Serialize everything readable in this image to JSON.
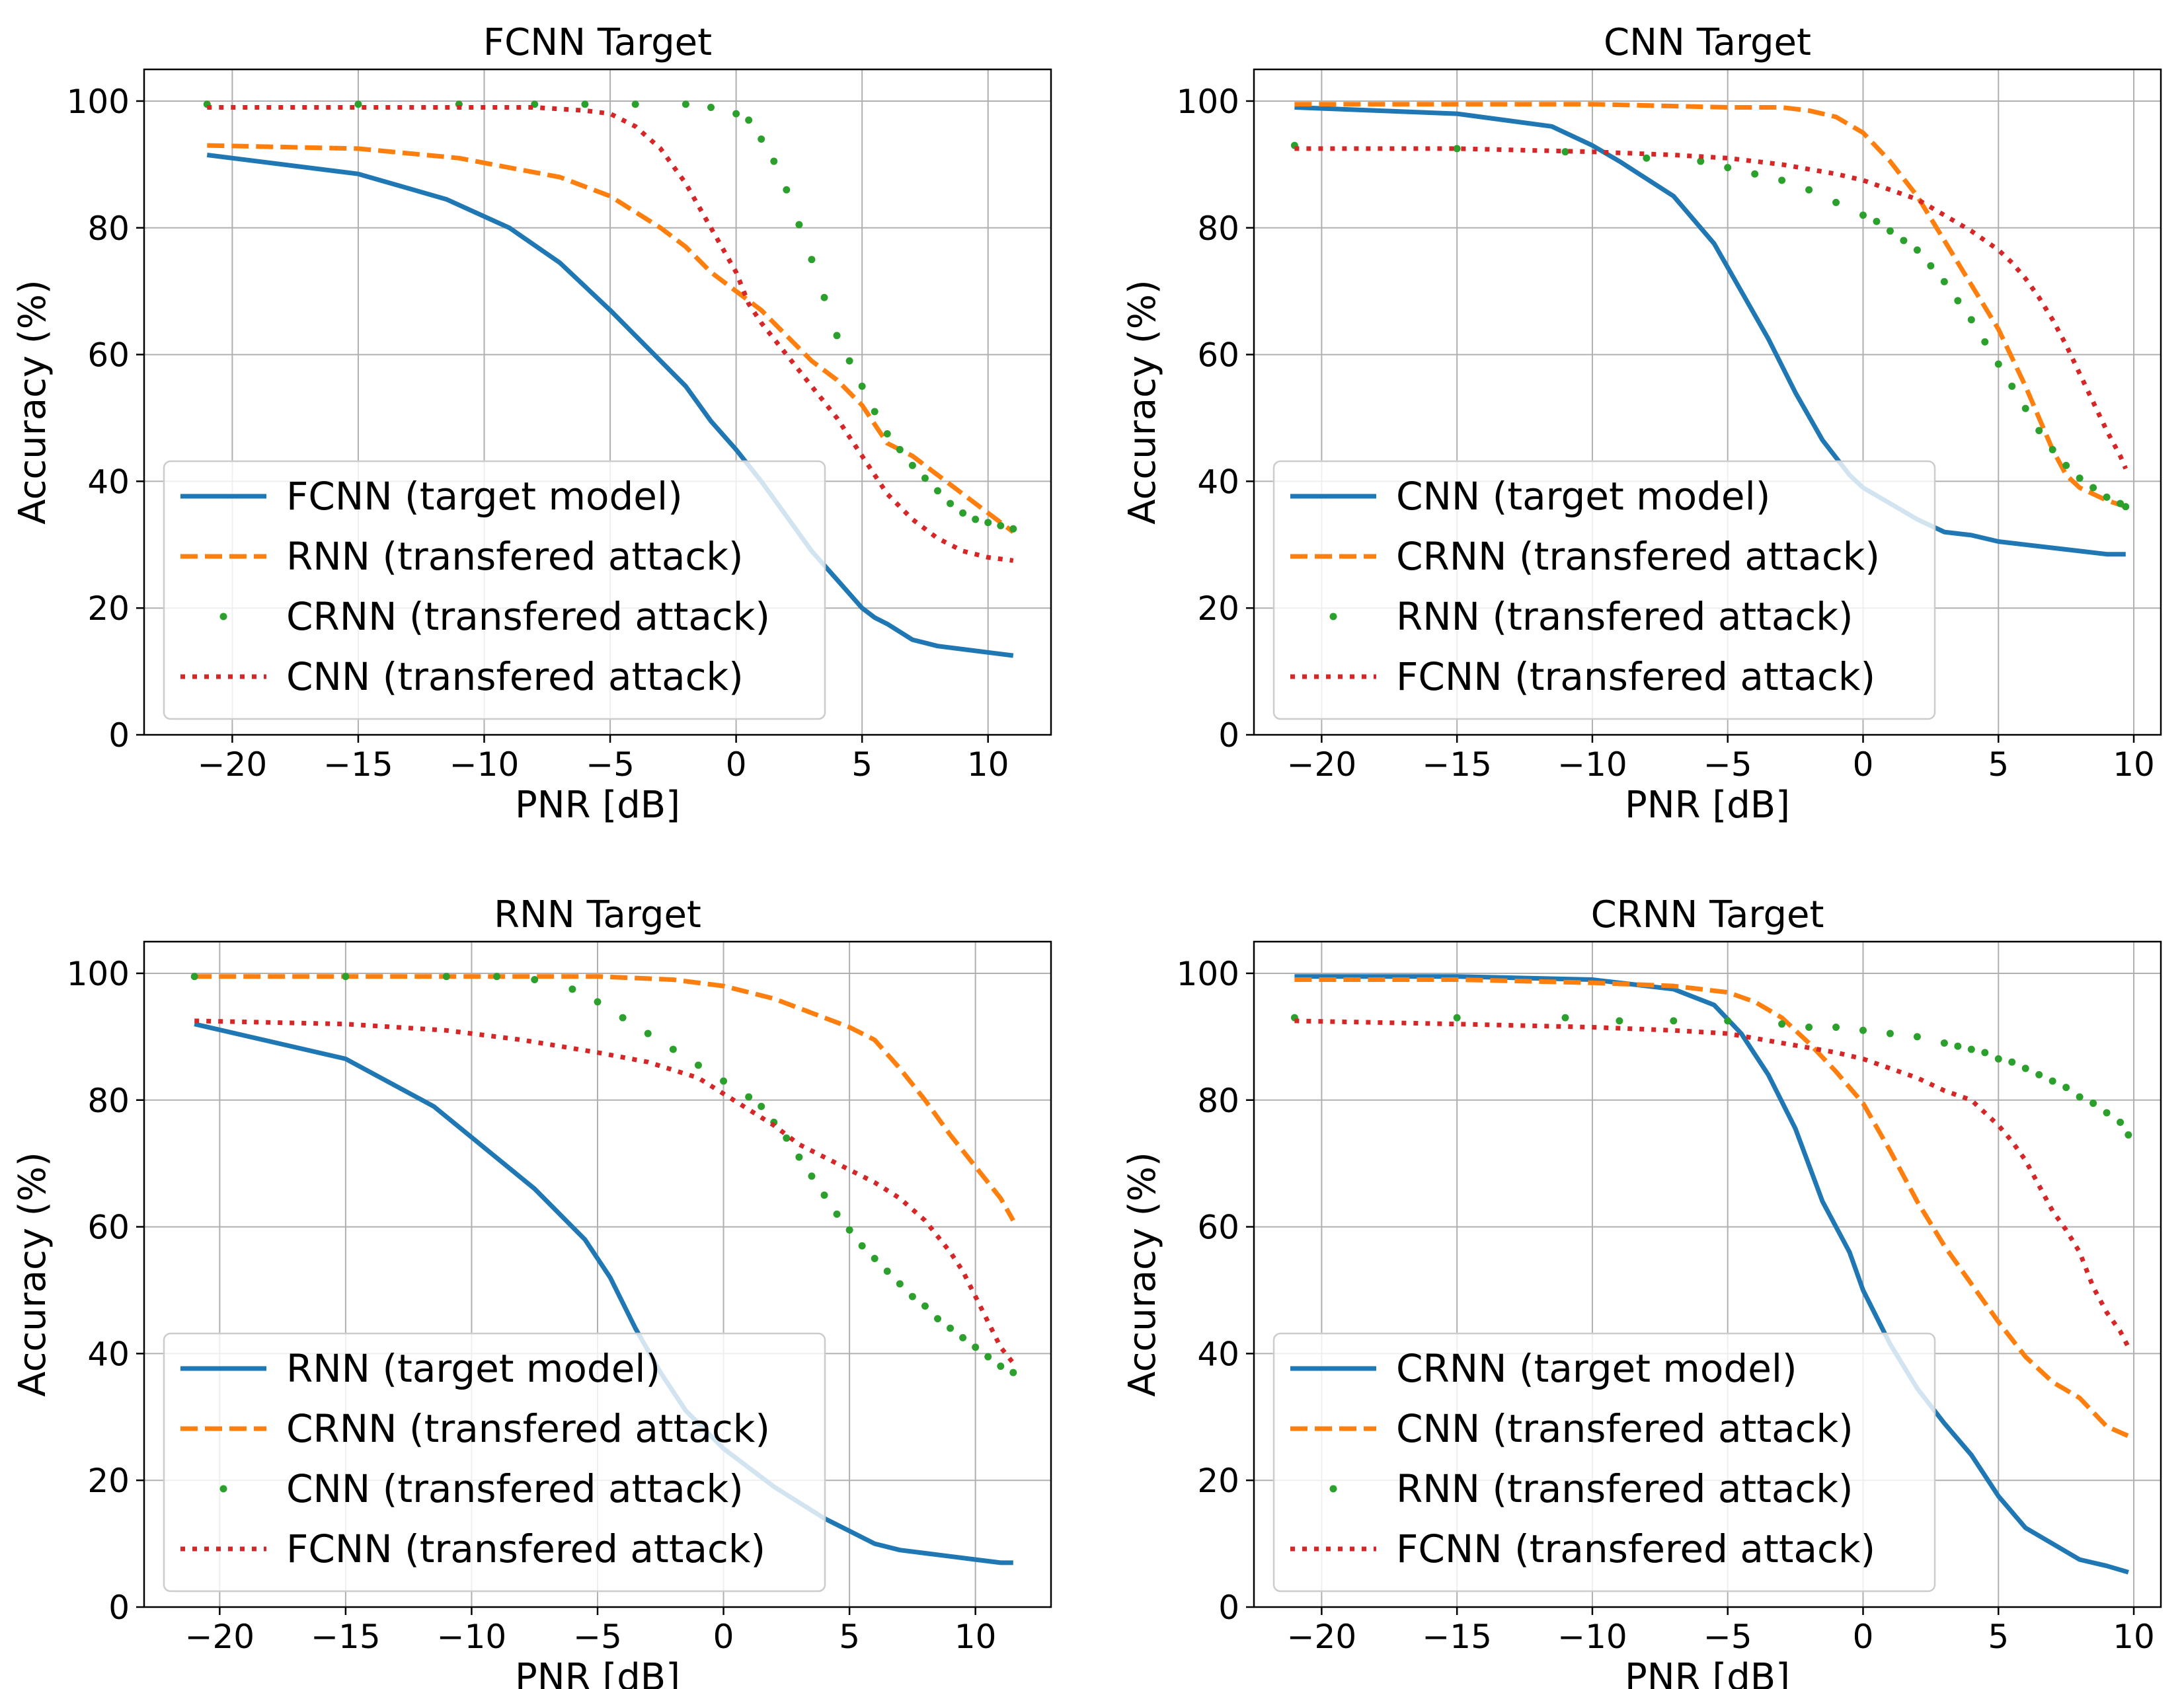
{
  "chart_data": [
    {
      "type": "line",
      "title": "FCNN Target",
      "xlabel": "PNR [dB]",
      "ylabel": "Accuracy (%)",
      "xlim": [
        -23.5,
        12.5
      ],
      "ylim": [
        0,
        105
      ],
      "xticks": [
        -20,
        -15,
        -10,
        -5,
        0,
        5,
        10
      ],
      "yticks": [
        0,
        20,
        40,
        60,
        80,
        100
      ],
      "xtick_labels": [
        "−20",
        "−15",
        "−10",
        "−5",
        "0",
        "5",
        "10"
      ],
      "ytick_labels": [
        "0",
        "20",
        "40",
        "60",
        "80",
        "100"
      ],
      "grid": true,
      "legend_position": "lower-left",
      "series": [
        {
          "name": "FCNN (target model)",
          "style": "solid",
          "color": "#1f77b4",
          "x": [
            -21,
            -15,
            -11.5,
            -9,
            -7,
            -5,
            -4,
            -3,
            -2,
            -1,
            0,
            1,
            2,
            3,
            4,
            5,
            5.5,
            6,
            7,
            8,
            9,
            10,
            11
          ],
          "y": [
            91.5,
            88.5,
            84.5,
            80,
            74.5,
            67,
            63,
            59,
            55,
            49.5,
            45,
            40,
            34.5,
            29,
            24.5,
            20,
            18.5,
            17.5,
            15,
            14,
            13.5,
            13,
            12.5
          ]
        },
        {
          "name": "RNN (transfered attack)",
          "style": "dashed",
          "color": "#ff7f0e",
          "x": [
            -21,
            -15,
            -11,
            -9,
            -7,
            -5,
            -3,
            -2,
            -1,
            0,
            1,
            2,
            3,
            4,
            5,
            6,
            7,
            8,
            9,
            10,
            11
          ],
          "y": [
            93,
            92.5,
            91,
            89.5,
            88,
            85,
            80,
            77,
            73,
            70,
            67,
            63,
            59,
            56,
            52,
            46,
            44,
            41,
            38,
            35,
            32
          ]
        },
        {
          "name": "CRNN (transfered attack)",
          "style": "dotted-markers",
          "color": "#2ca02c",
          "x": [
            -21,
            -15,
            -11,
            -8,
            -6,
            -4,
            -2,
            -1,
            0,
            0.5,
            1,
            1.5,
            2,
            2.5,
            3,
            3.5,
            4,
            4.5,
            5,
            5.5,
            6,
            6.5,
            7,
            7.5,
            8,
            8.5,
            9,
            9.5,
            10,
            10.5,
            11
          ],
          "y": [
            99.5,
            99.5,
            99.5,
            99.5,
            99.5,
            99.5,
            99.5,
            99,
            98,
            97,
            94,
            90.5,
            86,
            80.5,
            75,
            69,
            63,
            59,
            55,
            51,
            47.5,
            45,
            42.5,
            40.5,
            38.5,
            36.5,
            35,
            34,
            33.5,
            33,
            32.5
          ]
        },
        {
          "name": "CNN (transfered attack)",
          "style": "dotted",
          "color": "#d62728",
          "x": [
            -21,
            -15,
            -11,
            -8,
            -6,
            -5,
            -4,
            -3,
            -2,
            -1,
            0,
            0.5,
            1,
            2,
            3,
            4,
            5,
            6,
            7,
            8,
            9,
            10,
            11
          ],
          "y": [
            99,
            99,
            99,
            99,
            98.5,
            98,
            96,
            92.5,
            87,
            80,
            73,
            68,
            65,
            60,
            55,
            50,
            44,
            38,
            34,
            31,
            29,
            28,
            27.5
          ]
        }
      ]
    },
    {
      "type": "line",
      "title": "CNN Target",
      "xlabel": "PNR [dB]",
      "ylabel": "Accuracy (%)",
      "xlim": [
        -22.5,
        11
      ],
      "ylim": [
        0,
        105
      ],
      "xticks": [
        -20,
        -15,
        -10,
        -5,
        0,
        5,
        10
      ],
      "yticks": [
        0,
        20,
        40,
        60,
        80,
        100
      ],
      "xtick_labels": [
        "−20",
        "−15",
        "−10",
        "−5",
        "0",
        "5",
        "10"
      ],
      "ytick_labels": [
        "0",
        "20",
        "40",
        "60",
        "80",
        "100"
      ],
      "grid": true,
      "legend_position": "lower-left",
      "series": [
        {
          "name": "CNN (target model)",
          "style": "solid",
          "color": "#1f77b4",
          "x": [
            -21,
            -15,
            -11.5,
            -10,
            -9,
            -7,
            -5.5,
            -4.5,
            -3.5,
            -2.5,
            -1.5,
            -0.5,
            0,
            1,
            2,
            3,
            4,
            5,
            6,
            7,
            8,
            9,
            9.7
          ],
          "y": [
            99,
            98,
            96,
            93,
            90.5,
            85,
            77.5,
            70,
            62.5,
            54,
            46.5,
            41,
            39,
            36.5,
            34,
            32,
            31.5,
            30.5,
            30,
            29.5,
            29,
            28.5,
            28.5
          ]
        },
        {
          "name": "CRNN (transfered attack)",
          "style": "dashed",
          "color": "#ff7f0e",
          "x": [
            -21,
            -15,
            -10,
            -5,
            -3,
            -2,
            -1,
            0,
            1,
            2,
            3,
            4,
            5,
            6,
            6.5,
            7,
            7.5,
            8,
            8.5,
            9,
            9.7
          ],
          "y": [
            99.5,
            99.5,
            99.5,
            99,
            99,
            98.5,
            97.5,
            95,
            90.5,
            85,
            78,
            71,
            64,
            55,
            50,
            45,
            41,
            39,
            38,
            37,
            36
          ]
        },
        {
          "name": "RNN (transfered attack)",
          "style": "dotted-markers",
          "color": "#2ca02c",
          "x": [
            -21,
            -15,
            -11,
            -8,
            -6,
            -5,
            -4,
            -3,
            -2,
            -1,
            0,
            0.5,
            1,
            1.5,
            2,
            2.5,
            3,
            3.5,
            4,
            4.5,
            5,
            5.5,
            6,
            6.5,
            7,
            7.5,
            8,
            8.5,
            9,
            9.5,
            9.7
          ],
          "y": [
            93,
            92.5,
            92,
            91,
            90.5,
            89.5,
            88.5,
            87.5,
            86,
            84,
            82,
            81,
            79.5,
            78,
            76.5,
            74,
            71.5,
            68.5,
            65.5,
            62,
            58.5,
            55,
            51.5,
            48,
            45,
            42.5,
            40.5,
            39,
            37.5,
            36.5,
            36
          ]
        },
        {
          "name": "FCNN (transfered attack)",
          "style": "dotted",
          "color": "#d62728",
          "x": [
            -21,
            -15,
            -10,
            -7,
            -5,
            -3,
            -1,
            0,
            1,
            2,
            3,
            4,
            5,
            5.5,
            6,
            6.5,
            7,
            7.5,
            8,
            8.5,
            9,
            9.5,
            9.7
          ],
          "y": [
            92.5,
            92.5,
            92,
            91.5,
            91,
            90,
            88.5,
            87.5,
            86,
            84.5,
            82,
            79.5,
            76.5,
            74.5,
            72,
            69,
            65.5,
            61.5,
            57,
            52.5,
            48,
            44,
            42
          ]
        }
      ]
    },
    {
      "type": "line",
      "title": "RNN Target",
      "xlabel": "PNR [dB]",
      "ylabel": "Accuracy (%)",
      "xlim": [
        -23,
        13
      ],
      "ylim": [
        0,
        105
      ],
      "xticks": [
        -20,
        -15,
        -10,
        -5,
        0,
        5,
        10
      ],
      "yticks": [
        0,
        20,
        40,
        60,
        80,
        100
      ],
      "xtick_labels": [
        "−20",
        "−15",
        "−10",
        "−5",
        "0",
        "5",
        "10"
      ],
      "ytick_labels": [
        "0",
        "20",
        "40",
        "60",
        "80",
        "100"
      ],
      "grid": true,
      "legend_position": "lower-left",
      "series": [
        {
          "name": "RNN (target model)",
          "style": "solid",
          "color": "#1f77b4",
          "x": [
            -21,
            -15,
            -11.5,
            -9.5,
            -7.5,
            -5.5,
            -4.5,
            -3.5,
            -2.5,
            -1.5,
            -0.5,
            0,
            1,
            2,
            3,
            4,
            5,
            6,
            7,
            8,
            9,
            10,
            11,
            11.5
          ],
          "y": [
            92,
            86.5,
            79,
            72.5,
            66,
            58,
            52,
            44,
            37,
            31,
            27,
            25,
            22,
            19,
            16.5,
            14,
            12,
            10,
            9,
            8.5,
            8,
            7.5,
            7,
            7
          ]
        },
        {
          "name": "CRNN (transfered attack)",
          "style": "dashed",
          "color": "#ff7f0e",
          "x": [
            -21,
            -15,
            -10,
            -5,
            -2,
            0,
            1,
            2,
            3,
            4,
            5,
            6,
            7,
            8,
            9,
            10,
            11,
            11.5
          ],
          "y": [
            99.5,
            99.5,
            99.5,
            99.5,
            99,
            98,
            97,
            96,
            94.5,
            93,
            91.5,
            89.5,
            85,
            80,
            74.5,
            69.5,
            64.5,
            61
          ]
        },
        {
          "name": "CNN (transfered attack)",
          "style": "dotted-markers",
          "color": "#2ca02c",
          "x": [
            -21,
            -15,
            -11,
            -9,
            -7.5,
            -6,
            -5,
            -4,
            -3,
            -2,
            -1,
            0,
            1,
            1.5,
            2,
            2.5,
            3,
            3.5,
            4,
            4.5,
            5,
            5.5,
            6,
            6.5,
            7,
            7.5,
            8,
            8.5,
            9,
            9.5,
            10,
            10.5,
            11,
            11.5
          ],
          "y": [
            99.5,
            99.5,
            99.5,
            99.5,
            99,
            97.5,
            95.5,
            93,
            90.5,
            88,
            85.5,
            83,
            80.5,
            79,
            76.5,
            74,
            71,
            68,
            65,
            62,
            59.5,
            57,
            55,
            53,
            51,
            49,
            47.5,
            45.5,
            44,
            42.5,
            41,
            39.5,
            38,
            37
          ]
        },
        {
          "name": "FCNN (transfered attack)",
          "style": "dotted",
          "color": "#d62728",
          "x": [
            -21,
            -15,
            -11,
            -8,
            -5,
            -3,
            -1,
            0,
            1,
            2,
            3,
            4,
            5,
            6,
            7,
            8,
            9,
            9.5,
            10,
            10.5,
            11,
            11.5
          ],
          "y": [
            92.5,
            92,
            91,
            89.5,
            87.5,
            86,
            83.5,
            81,
            78.5,
            76,
            73,
            71,
            69,
            67,
            64.5,
            61,
            56,
            53,
            49,
            45,
            41,
            38.5
          ]
        }
      ]
    },
    {
      "type": "line",
      "title": "CRNN Target",
      "xlabel": "PNR [dB]",
      "ylabel": "Accuracy (%)",
      "xlim": [
        -22.5,
        11
      ],
      "ylim": [
        0,
        105
      ],
      "xticks": [
        -20,
        -15,
        -10,
        -5,
        0,
        5,
        10
      ],
      "yticks": [
        0,
        20,
        40,
        60,
        80,
        100
      ],
      "xtick_labels": [
        "−20",
        "−15",
        "−10",
        "−5",
        "0",
        "5",
        "10"
      ],
      "ytick_labels": [
        "0",
        "20",
        "40",
        "60",
        "80",
        "100"
      ],
      "grid": true,
      "legend_position": "lower-left",
      "series": [
        {
          "name": "CRNN (target model)",
          "style": "solid",
          "color": "#1f77b4",
          "x": [
            -21,
            -15,
            -10,
            -7,
            -5.5,
            -4.5,
            -3.5,
            -2.5,
            -1.5,
            -0.5,
            0,
            1,
            2,
            3,
            4,
            5,
            6,
            7,
            8,
            9,
            9.8
          ],
          "y": [
            99.5,
            99.5,
            99,
            97.5,
            95,
            90.5,
            84,
            75.5,
            64,
            56,
            50,
            41.5,
            34.5,
            29,
            24,
            17.5,
            12.5,
            10,
            7.5,
            6.5,
            5.5
          ]
        },
        {
          "name": "CNN (transfered attack)",
          "style": "dashed",
          "color": "#ff7f0e",
          "x": [
            -21,
            -15,
            -10,
            -7,
            -5,
            -4,
            -3,
            -2,
            -1,
            0,
            1,
            2,
            3,
            4,
            5,
            6,
            7,
            8,
            9,
            9.8
          ],
          "y": [
            99,
            99,
            98.5,
            98,
            97,
            95.5,
            93,
            89,
            84.5,
            79.5,
            72,
            64,
            57,
            51,
            45,
            39.5,
            35.5,
            33,
            28.5,
            27
          ]
        },
        {
          "name": "RNN (transfered attack)",
          "style": "dotted-markers",
          "color": "#2ca02c",
          "x": [
            -21,
            -15,
            -11,
            -9,
            -7,
            -5,
            -3,
            -2,
            -1,
            0,
            1,
            2,
            3,
            3.5,
            4,
            4.5,
            5,
            5.5,
            6,
            6.5,
            7,
            7.5,
            8,
            8.5,
            9,
            9.5,
            9.8
          ],
          "y": [
            93,
            93,
            93,
            92.5,
            92.5,
            92.5,
            92,
            91.5,
            91.5,
            91,
            90.5,
            90,
            89,
            88.5,
            88,
            87.5,
            86.5,
            86,
            85,
            84,
            83,
            82,
            80.5,
            79.5,
            78,
            76.5,
            74.5
          ]
        },
        {
          "name": "FCNN (transfered attack)",
          "style": "dotted",
          "color": "#d62728",
          "x": [
            -21,
            -15,
            -10,
            -7,
            -5,
            -3,
            -1,
            0,
            1,
            2,
            3,
            4,
            4.5,
            5,
            5.5,
            6,
            6.5,
            7,
            7.5,
            8,
            8.5,
            9,
            9.5,
            9.8
          ],
          "y": [
            92.5,
            92,
            91.5,
            91,
            90.5,
            89,
            87.5,
            86.5,
            85,
            83.5,
            81.5,
            80,
            78,
            76,
            73.5,
            70.5,
            66.5,
            62.5,
            59.5,
            56,
            50.5,
            46.5,
            43.5,
            41
          ]
        }
      ]
    }
  ]
}
